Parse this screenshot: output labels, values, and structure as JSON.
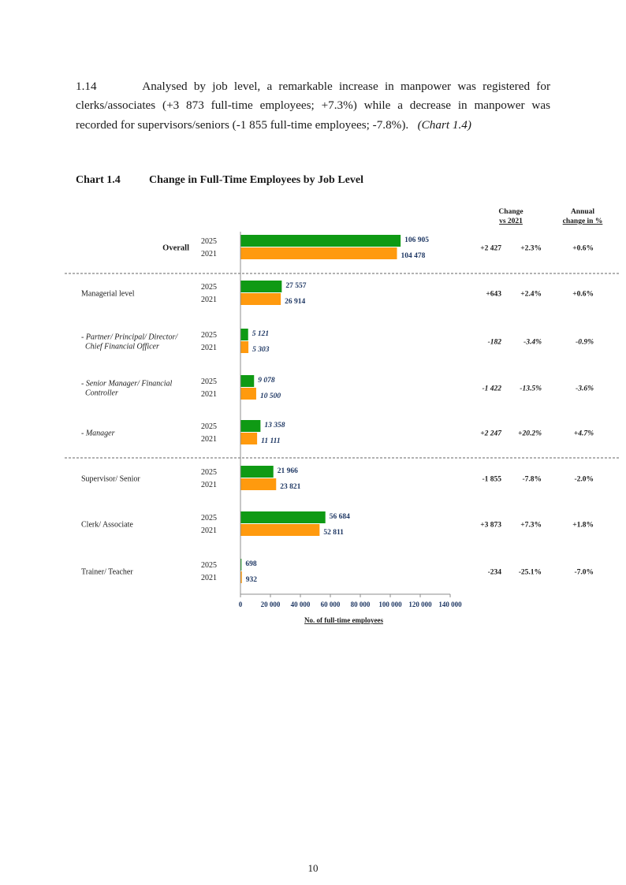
{
  "paragraph": {
    "number": "1.14",
    "text": "Analysed by job level, a remarkable increase in manpower was registered for clerks/associates (+3 873 full-time employees; +7.3%) while a decrease in manpower was recorded for supervisors/seniors (-1 855 full-time employees; -7.8%).",
    "chart_ref": "(Chart 1.4)"
  },
  "chart_heading": {
    "number": "Chart 1.4",
    "title": "Change in Full-Time Employees by Job Level"
  },
  "colors": {
    "y2025": "#0f9a14",
    "y2021": "#ff9a0e",
    "value_label": "#1f3864",
    "text": "#1a1a1a"
  },
  "chart_data": {
    "type": "bar",
    "orientation": "horizontal",
    "title": "Change in Full-Time Employees by Job Level",
    "xlabel": "No. of full-time employees",
    "xlim": [
      0,
      140000
    ],
    "x_ticks": [
      0,
      20000,
      40000,
      60000,
      80000,
      100000,
      120000,
      140000
    ],
    "x_tick_labels": [
      "0",
      "20 000",
      "40 000",
      "60 000",
      "80 000",
      "100 000",
      "120 000",
      "140 000"
    ],
    "series": [
      {
        "name": "2025",
        "values": [
          106905,
          27557,
          5121,
          9078,
          13358,
          21966,
          56684,
          698
        ]
      },
      {
        "name": "2021",
        "values": [
          104478,
          26914,
          5303,
          10500,
          11111,
          23821,
          52811,
          932
        ]
      }
    ],
    "column_headers": {
      "change_line1": "Change",
      "change_line2": "vs 2021",
      "annual_line1": "Annual",
      "annual_line2": "change in %"
    },
    "categories": [
      {
        "label": [
          "Overall"
        ],
        "style": "bold",
        "y2025": "2025",
        "y2021": "2021",
        "label_2025": "106 905",
        "label_2021": "104 478",
        "change_abs": "+2 427",
        "change_pct": "+2.3%",
        "annual": "+0.6%"
      },
      {
        "label": [
          "Managerial level"
        ],
        "style": "normal",
        "y2025": "2025",
        "y2021": "2021",
        "label_2025": "27 557",
        "label_2021": "26 914",
        "change_abs": "+643",
        "change_pct": "+2.4%",
        "annual": "+0.6%"
      },
      {
        "label": [
          "- Partner/ Principal/ Director/",
          "Chief Financial Officer"
        ],
        "style": "italic",
        "y2025": "2025",
        "y2021": "2021",
        "label_2025": "5 121",
        "label_2021": "5 303",
        "change_abs": "-182",
        "change_pct": "-3.4%",
        "annual": "-0.9%"
      },
      {
        "label": [
          "- Senior Manager/ Financial",
          "Controller"
        ],
        "style": "italic",
        "y2025": "2025",
        "y2021": "2021",
        "label_2025": "9 078",
        "label_2021": "10 500",
        "change_abs": "-1 422",
        "change_pct": "-13.5%",
        "annual": "-3.6%"
      },
      {
        "label": [
          "- Manager"
        ],
        "style": "italic",
        "y2025": "2025",
        "y2021": "2021",
        "label_2025": "13 358",
        "label_2021": "11 111",
        "change_abs": "+2 247",
        "change_pct": "+20.2%",
        "annual": "+4.7%"
      },
      {
        "label": [
          "Supervisor/ Senior"
        ],
        "style": "normal",
        "y2025": "2025",
        "y2021": "2021",
        "label_2025": "21 966",
        "label_2021": "23 821",
        "change_abs": "-1 855",
        "change_pct": "-7.8%",
        "annual": "-2.0%"
      },
      {
        "label": [
          "Clerk/ Associate"
        ],
        "style": "normal",
        "y2025": "2025",
        "y2021": "2021",
        "label_2025": "56 684",
        "label_2021": "52 811",
        "change_abs": "+3 873",
        "change_pct": "+7.3%",
        "annual": "+1.8%"
      },
      {
        "label": [
          "Trainer/ Teacher"
        ],
        "style": "normal",
        "y2025": "2025",
        "y2021": "2021",
        "label_2025": "698",
        "label_2021": "932",
        "change_abs": "-234",
        "change_pct": "-25.1%",
        "annual": "-7.0%"
      }
    ]
  },
  "page_number": "10"
}
